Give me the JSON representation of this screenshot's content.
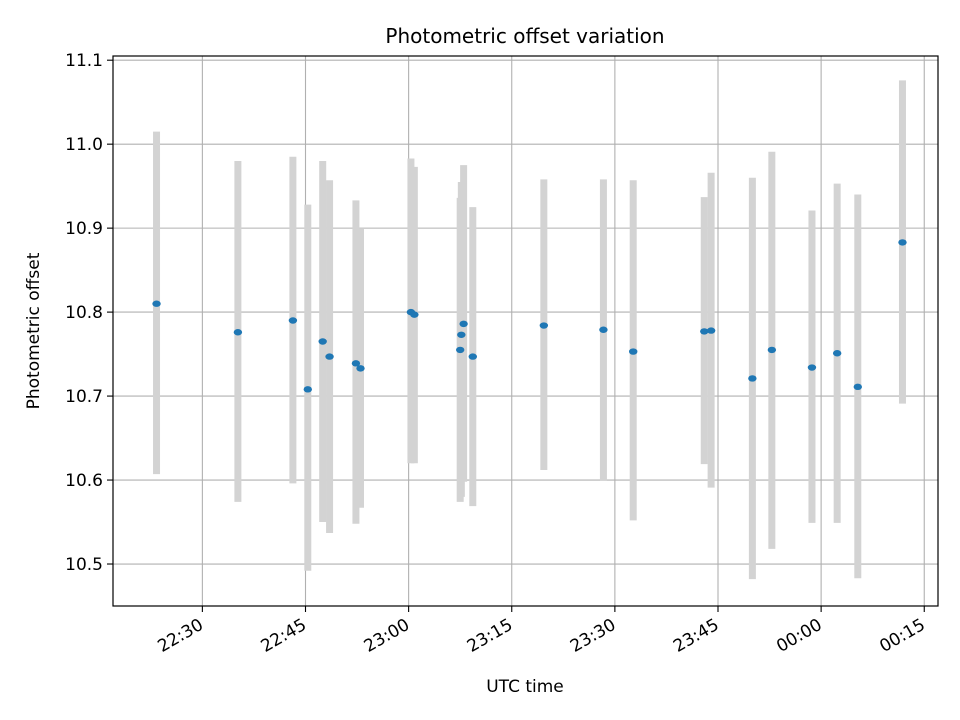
{
  "chart_data": {
    "type": "scatter",
    "title": "Photometric offset variation",
    "xlabel": "UTC time",
    "ylabel": "Photometric offset",
    "grid": true,
    "xlim": [
      "22:17",
      "00:17"
    ],
    "ylim": [
      10.45,
      11.105
    ],
    "x_ticks": [
      "22:30",
      "22:45",
      "23:00",
      "23:15",
      "23:30",
      "23:45",
      "00:00",
      "00:15"
    ],
    "y_ticks": [
      "10.5",
      "10.6",
      "10.7",
      "10.8",
      "10.9",
      "11.0",
      "11.1"
    ],
    "marker_color": "#1f77b4",
    "errorbar_color": "#d3d3d3",
    "points": [
      {
        "time": "22:23:20",
        "y": 10.81,
        "low": 10.607,
        "high": 11.015
      },
      {
        "time": "22:35:10",
        "y": 10.776,
        "low": 10.574,
        "high": 10.98
      },
      {
        "time": "22:43:10",
        "y": 10.79,
        "low": 10.596,
        "high": 10.985
      },
      {
        "time": "22:45:20",
        "y": 10.708,
        "low": 10.492,
        "high": 10.928
      },
      {
        "time": "22:47:30",
        "y": 10.765,
        "low": 10.55,
        "high": 10.98
      },
      {
        "time": "22:48:30",
        "y": 10.747,
        "low": 10.537,
        "high": 10.957
      },
      {
        "time": "22:52:20",
        "y": 10.739,
        "low": 10.548,
        "high": 10.933
      },
      {
        "time": "22:53:00",
        "y": 10.733,
        "low": 10.567,
        "high": 10.9
      },
      {
        "time": "23:00:20",
        "y": 10.8,
        "low": 10.62,
        "high": 10.983
      },
      {
        "time": "23:00:50",
        "y": 10.797,
        "low": 10.62,
        "high": 10.973
      },
      {
        "time": "23:07:30",
        "y": 10.755,
        "low": 10.574,
        "high": 10.936
      },
      {
        "time": "23:07:40",
        "y": 10.773,
        "low": 10.58,
        "high": 10.955
      },
      {
        "time": "23:08:00",
        "y": 10.786,
        "low": 10.598,
        "high": 10.975
      },
      {
        "time": "23:09:20",
        "y": 10.747,
        "low": 10.569,
        "high": 10.925
      },
      {
        "time": "23:19:40",
        "y": 10.784,
        "low": 10.612,
        "high": 10.958
      },
      {
        "time": "23:28:20",
        "y": 10.779,
        "low": 10.599,
        "high": 10.958
      },
      {
        "time": "23:32:40",
        "y": 10.753,
        "low": 10.552,
        "high": 10.957
      },
      {
        "time": "23:43:00",
        "y": 10.777,
        "low": 10.619,
        "high": 10.937
      },
      {
        "time": "23:44:00",
        "y": 10.778,
        "low": 10.591,
        "high": 10.966
      },
      {
        "time": "23:50:00",
        "y": 10.721,
        "low": 10.482,
        "high": 10.96
      },
      {
        "time": "23:52:50",
        "y": 10.755,
        "low": 10.518,
        "high": 10.991
      },
      {
        "time": "23:58:40",
        "y": 10.734,
        "low": 10.549,
        "high": 10.921
      },
      {
        "time": "00:02:20",
        "y": 10.751,
        "low": 10.549,
        "high": 10.953
      },
      {
        "time": "00:05:20",
        "y": 10.711,
        "low": 10.483,
        "high": 10.94
      },
      {
        "time": "00:11:50",
        "y": 10.883,
        "low": 10.691,
        "high": 11.076
      }
    ]
  }
}
